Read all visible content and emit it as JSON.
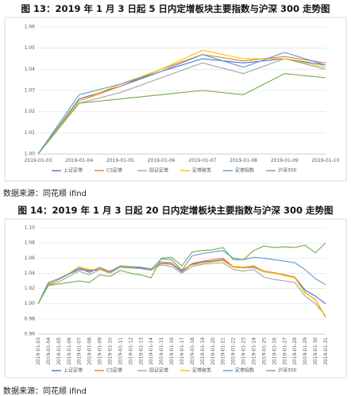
{
  "figures": [
    {
      "title": "图 13：2019 年 1 月 3 日起 5 日内定增板块主要指数与沪深 300 走势图",
      "source": "数据来源：同花顺 ifind"
    },
    {
      "title": "图 14：2019 年 1 月 3 日起 20 日内定增板块主要指数与沪深 300 走势图",
      "source": "数据来源：同花顺 ifind"
    }
  ],
  "chart_data": [
    {
      "type": "line",
      "title": "",
      "xlabel": "",
      "ylabel": "",
      "ylim": [
        1.0,
        1.06
      ],
      "yticks": [
        "1.00",
        "1.01",
        "1.02",
        "1.03",
        "1.04",
        "1.05",
        "1.06"
      ],
      "grid": true,
      "legend": "bottom",
      "categories": [
        "2019-01-03",
        "2019-01-04",
        "2019-01-05",
        "2019-01-06",
        "2019-01-07",
        "2019-01-08",
        "2019-01-09",
        "2019-01-10"
      ],
      "series": [
        {
          "name": "上证定增",
          "color": "#4472c4",
          "values": [
            1.0,
            1.026,
            1.032,
            1.039,
            1.045,
            1.043,
            1.045,
            1.042
          ]
        },
        {
          "name": "CS定增",
          "color": "#ed7d31",
          "values": [
            1.0,
            1.025,
            1.032,
            1.04,
            1.047,
            1.044,
            1.046,
            1.043
          ]
        },
        {
          "name": "国证定增",
          "color": "#a5a5a5",
          "values": [
            1.0,
            1.024,
            1.029,
            1.036,
            1.043,
            1.038,
            1.045,
            1.04
          ]
        },
        {
          "name": "定增破发",
          "color": "#ffc000",
          "values": [
            1.0,
            1.025,
            1.033,
            1.04,
            1.049,
            1.045,
            1.045,
            1.041
          ]
        },
        {
          "name": "定增指数",
          "color": "#5b9bd5",
          "values": [
            1.0,
            1.028,
            1.033,
            1.039,
            1.047,
            1.041,
            1.048,
            1.042
          ]
        },
        {
          "name": "沪深300",
          "color": "#70ad47",
          "values": [
            1.0,
            1.024,
            1.026,
            1.028,
            1.03,
            1.028,
            1.038,
            1.036
          ]
        }
      ]
    },
    {
      "type": "line",
      "title": "",
      "xlabel": "",
      "ylabel": "",
      "ylim": [
        0.96,
        1.1
      ],
      "yticks": [
        "0.96",
        "0.98",
        "1.00",
        "1.02",
        "1.04",
        "1.06",
        "1.08",
        "1.10"
      ],
      "grid": true,
      "legend": "bottom",
      "categories": [
        "2019-01-03",
        "2019-01-04",
        "2019-01-05",
        "2019-01-06",
        "2019-01-07",
        "2019-01-08",
        "2019-01-09",
        "2019-01-10",
        "2019-01-11",
        "2019-01-12",
        "2019-01-13",
        "2019-01-14",
        "2019-01-15",
        "2019-01-16",
        "2019-01-17",
        "2019-01-18",
        "2019-01-19",
        "2019-01-20",
        "2019-01-21",
        "2019-01-22",
        "2019-01-23",
        "2019-01-24",
        "2019-01-25",
        "2019-01-26",
        "2019-01-27",
        "2019-01-28",
        "2019-01-29",
        "2019-01-30",
        "2019-01-31"
      ],
      "series": [
        {
          "name": "上证定增",
          "color": "#4472c4",
          "values": [
            1.0,
            1.026,
            1.032,
            1.039,
            1.045,
            1.043,
            1.045,
            1.042,
            1.05,
            1.049,
            1.048,
            1.046,
            1.053,
            1.052,
            1.042,
            1.052,
            1.055,
            1.056,
            1.058,
            1.048,
            1.047,
            1.048,
            1.042,
            1.04,
            1.038,
            1.035,
            1.018,
            1.01,
            1.0
          ]
        },
        {
          "name": "CS定增",
          "color": "#ed7d31",
          "values": [
            1.0,
            1.025,
            1.032,
            1.04,
            1.047,
            1.044,
            1.046,
            1.043,
            1.049,
            1.048,
            1.047,
            1.045,
            1.055,
            1.054,
            1.043,
            1.053,
            1.056,
            1.058,
            1.06,
            1.049,
            1.048,
            1.05,
            1.043,
            1.041,
            1.038,
            1.035,
            1.015,
            1.005,
            0.982
          ]
        },
        {
          "name": "国证定增",
          "color": "#a5a5a5",
          "values": [
            1.0,
            1.024,
            1.029,
            1.036,
            1.043,
            1.038,
            1.045,
            1.04,
            1.048,
            1.047,
            1.046,
            1.044,
            1.051,
            1.049,
            1.04,
            1.049,
            1.052,
            1.053,
            1.054,
            1.045,
            1.043,
            1.045,
            1.035,
            1.032,
            1.03,
            1.028,
            1.01,
            1.0,
            0.984
          ]
        },
        {
          "name": "定增破发",
          "color": "#ffc000",
          "values": [
            1.0,
            1.025,
            1.033,
            1.04,
            1.049,
            1.045,
            1.045,
            1.041,
            1.05,
            1.049,
            1.047,
            1.046,
            1.054,
            1.053,
            1.045,
            1.051,
            1.053,
            1.055,
            1.057,
            1.048,
            1.047,
            1.049,
            1.042,
            1.04,
            1.037,
            1.034,
            1.014,
            1.006,
            0.983
          ]
        },
        {
          "name": "定增指数",
          "color": "#5b9bd5",
          "values": [
            1.0,
            1.028,
            1.033,
            1.039,
            1.047,
            1.041,
            1.048,
            1.042,
            1.049,
            1.048,
            1.047,
            1.045,
            1.059,
            1.058,
            1.044,
            1.063,
            1.066,
            1.068,
            1.07,
            1.06,
            1.058,
            1.061,
            1.06,
            1.058,
            1.056,
            1.054,
            1.045,
            1.033,
            1.025
          ]
        },
        {
          "name": "沪深300",
          "color": "#70ad47",
          "values": [
            1.0,
            1.024,
            1.026,
            1.028,
            1.03,
            1.028,
            1.038,
            1.036,
            1.044,
            1.04,
            1.038,
            1.034,
            1.06,
            1.061,
            1.05,
            1.068,
            1.07,
            1.071,
            1.074,
            1.058,
            1.058,
            1.07,
            1.076,
            1.074,
            1.075,
            1.074,
            1.077,
            1.067,
            1.08
          ]
        }
      ]
    }
  ]
}
